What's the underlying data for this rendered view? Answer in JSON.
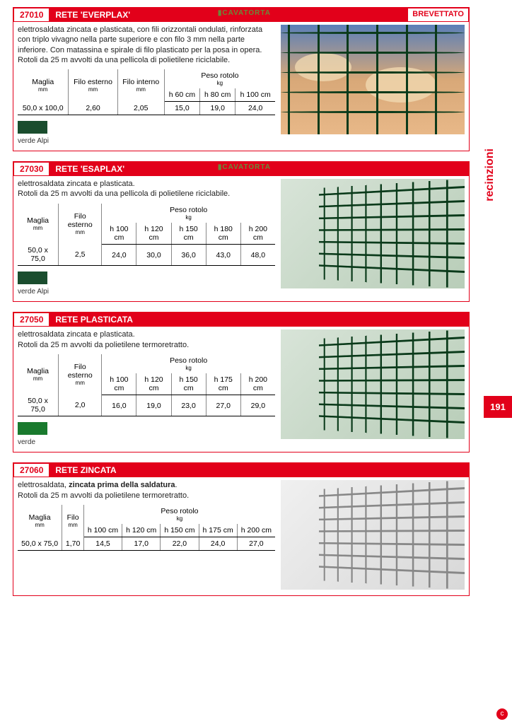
{
  "side_tab": "recinzioni",
  "page_number": "191",
  "colors": {
    "accent": "#e2001a",
    "swatch_verde_alpi": "#1a4d2e",
    "swatch_verde": "#1a7a2e",
    "mesh_green": "#0a3a1a",
    "mesh_silver": "#888888"
  },
  "products": [
    {
      "code": "27010",
      "name": "RETE 'EVERPLAX'",
      "badge": "BREVETTATO",
      "brand": "CAVATORTA",
      "desc_html": "elettrosaldata zincata e plasticata, con fili orizzontali ondulati, rinforzata con triplo vivagno nella parte superiore e con filo 3 mm nella parte inferiore. Con matassina e spirale di filo plasticato per la posa in opera.<br>Rotoli da 25 m avvolti da una pellicola di polietilene riciclabile.",
      "table": {
        "headers_top": [
          {
            "label": "Maglia",
            "unit": "mm",
            "colspan": 1,
            "rowspan": 2
          },
          {
            "label": "Filo esterno",
            "unit": "mm",
            "colspan": 1,
            "rowspan": 2
          },
          {
            "label": "Filo interno",
            "unit": "mm",
            "colspan": 1,
            "rowspan": 2
          },
          {
            "label": "Peso rotolo",
            "unit": "kg",
            "colspan": 3,
            "rowspan": 1
          }
        ],
        "headers_sub": [
          "h 60 cm",
          "h 80 cm",
          "h 100 cm"
        ],
        "rows": [
          [
            "50,0 x 100,0",
            "2,60",
            "2,05",
            "15,0",
            "19,0",
            "24,0"
          ]
        ]
      },
      "swatch": {
        "color": "#1a4d2e",
        "label": "verde Alpi"
      },
      "img_style": "sky"
    },
    {
      "code": "27030",
      "name": "RETE 'ESAPLAX'",
      "brand": "CAVATORTA",
      "desc_html": "elettrosaldata zincata e plasticata.<br>Rotoli da 25 m avvolti da una pellicola di polietilene riciclabile.",
      "table": {
        "headers_top": [
          {
            "label": "Maglia",
            "unit": "mm",
            "colspan": 1,
            "rowspan": 2
          },
          {
            "label": "Filo esterno",
            "unit": "mm",
            "colspan": 1,
            "rowspan": 2
          },
          {
            "label": "Peso rotolo",
            "unit": "kg",
            "colspan": 5,
            "rowspan": 1
          }
        ],
        "headers_sub": [
          "h 100 cm",
          "h 120 cm",
          "h 150 cm",
          "h 180 cm",
          "h 200 cm"
        ],
        "rows": [
          [
            "50,0 x 75,0",
            "2,5",
            "24,0",
            "30,0",
            "36,0",
            "43,0",
            "48,0"
          ]
        ]
      },
      "swatch": {
        "color": "#1a4d2e",
        "label": "verde Alpi"
      },
      "img_style": "green-persp"
    },
    {
      "code": "27050",
      "name": "RETE PLASTICATA",
      "desc_html": "elettrosaldata zincata e plasticata.<br>Rotoli da 25 m avvolti da polietilene termoretratto.",
      "table": {
        "headers_top": [
          {
            "label": "Maglia",
            "unit": "mm",
            "colspan": 1,
            "rowspan": 2
          },
          {
            "label": "Filo esterno",
            "unit": "mm",
            "colspan": 1,
            "rowspan": 2
          },
          {
            "label": "Peso rotolo",
            "unit": "kg",
            "colspan": 5,
            "rowspan": 1
          }
        ],
        "headers_sub": [
          "h 100 cm",
          "h 120 cm",
          "h 150 cm",
          "h 175 cm",
          "h 200 cm"
        ],
        "rows": [
          [
            "50,0 x 75,0",
            "2,0",
            "16,0",
            "19,0",
            "23,0",
            "27,0",
            "29,0"
          ]
        ]
      },
      "swatch": {
        "color": "#1a7a2e",
        "label": "verde"
      },
      "img_style": "green-persp"
    },
    {
      "code": "27060",
      "name": "RETE ZINCATA",
      "desc_html": "elettrosaldata, <b>zincata prima della saldatura</b>.<br>Rotoli da 25 m avvolti da polietilene termoretratto.",
      "table": {
        "headers_top": [
          {
            "label": "Maglia",
            "unit": "mm",
            "colspan": 1,
            "rowspan": 2
          },
          {
            "label": "Filo",
            "unit": "mm",
            "colspan": 1,
            "rowspan": 2
          },
          {
            "label": "Peso rotolo",
            "unit": "kg",
            "colspan": 5,
            "rowspan": 1
          }
        ],
        "headers_sub": [
          "h 100 cm",
          "h 120 cm",
          "h 150 cm",
          "h 175 cm",
          "h 200 cm"
        ],
        "rows": [
          [
            "50,0 x 75,0",
            "1,70",
            "14,5",
            "17,0",
            "22,0",
            "24,0",
            "27,0"
          ]
        ]
      },
      "img_style": "silver-persp"
    }
  ]
}
